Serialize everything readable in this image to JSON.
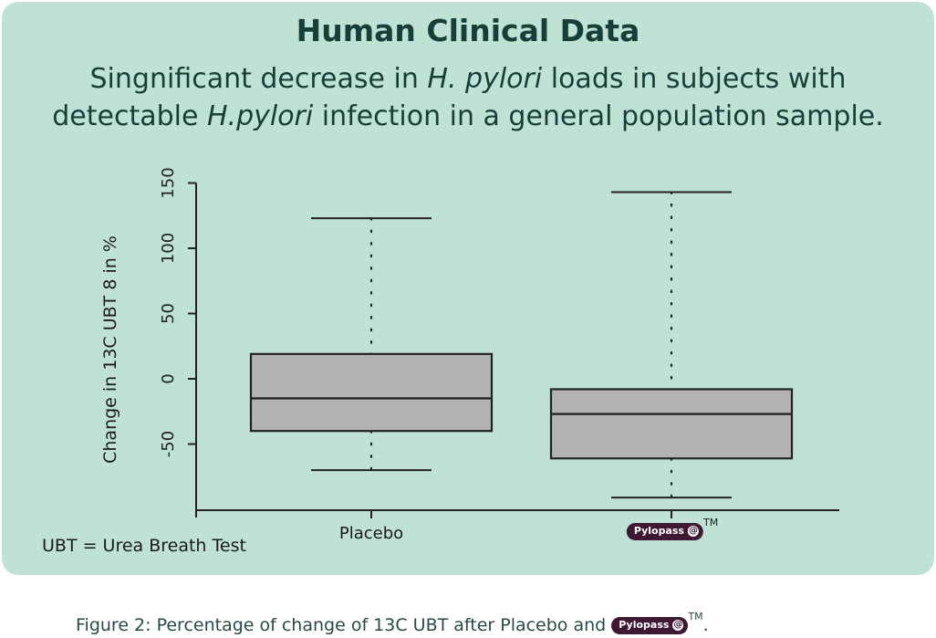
{
  "colors": {
    "panel_bg": "#bfe2d4",
    "title_color": "#173f3a",
    "box_fill": "#b3b3b3",
    "ink": "#222222",
    "badge_bg": "#3f1833"
  },
  "header": {
    "title": "Human Clinical Data",
    "subtitle_part1": "Singnificant decrease in ",
    "subtitle_italic1": "H. pylori",
    "subtitle_part2": " loads in subjects with",
    "subtitle_part3": "detectable ",
    "subtitle_italic2": "H.pylori",
    "subtitle_part4": " infection in a general population sample."
  },
  "chart_data": {
    "type": "box",
    "ylabel": "Change in 13C UBT 8 in %",
    "y_ticks": [
      -50,
      0,
      50,
      100,
      150
    ],
    "ylim": [
      -100,
      150
    ],
    "categories": [
      "Placebo",
      "Pylopass"
    ],
    "series": [
      {
        "category": "Placebo",
        "whisker_low": -70,
        "q1": -40,
        "median": -15,
        "q3": 19,
        "whisker_high": 123
      },
      {
        "category": "Pylopass",
        "whisker_low": -91,
        "q1": -61,
        "median": -27,
        "q3": -8,
        "whisker_high": 143
      }
    ],
    "grid": false
  },
  "labels": {
    "placebo": "Placebo",
    "brand": "Pylopass",
    "tm": "TM",
    "note": "UBT = Urea Breath Test"
  },
  "caption": {
    "text": "Figure 2: Percentage of change of 13C UBT after Placebo and ",
    "brand": "Pylopass",
    "tm": "TM",
    "end": "."
  }
}
